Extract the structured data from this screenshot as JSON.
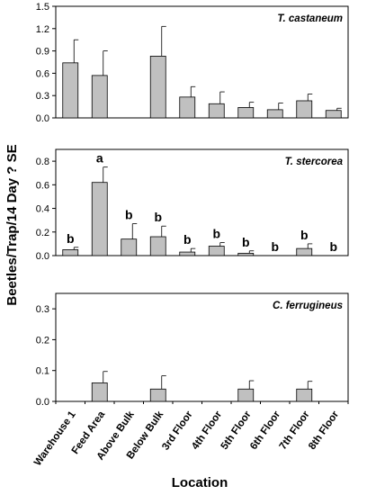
{
  "figure": {
    "ylabel": "Beetles/Trap/14 Day ? SE",
    "xlabel": "Location"
  },
  "chart_data": [
    {
      "type": "bar",
      "title": "T. castaneum",
      "categories": [
        "Warehouse 1",
        "Feed Area",
        "Above Bulk",
        "Below Bulk",
        "3rd Floor",
        "4th Floor",
        "5th Floor",
        "6th Floor",
        "7th Floor",
        "8th Floor"
      ],
      "values": [
        0.74,
        0.57,
        0,
        0.83,
        0.28,
        0.19,
        0.14,
        0.11,
        0.23,
        0.1
      ],
      "errors": [
        0.31,
        0.33,
        0,
        0.4,
        0.14,
        0.16,
        0.07,
        0.09,
        0.09,
        0.03
      ],
      "ylim": [
        0,
        1.5
      ],
      "yticks": [
        "0.0",
        "0.3",
        "0.6",
        "0.9",
        "1.2",
        "1.5"
      ],
      "letters": [],
      "bar_color": "#c0c0c0"
    },
    {
      "type": "bar",
      "title": "T. stercorea",
      "categories": [
        "Warehouse 1",
        "Feed Area",
        "Above Bulk",
        "Below Bulk",
        "3rd Floor",
        "4th Floor",
        "5th Floor",
        "6th Floor",
        "7th Floor",
        "8th Floor"
      ],
      "values": [
        0.05,
        0.62,
        0.14,
        0.16,
        0.03,
        0.08,
        0.02,
        0,
        0.06,
        0
      ],
      "errors": [
        0.02,
        0.13,
        0.13,
        0.09,
        0.03,
        0.03,
        0.02,
        0,
        0.04,
        0
      ],
      "ylim": [
        0,
        0.9
      ],
      "yticks": [
        "0.0",
        "0.2",
        "0.4",
        "0.6",
        "0.8"
      ],
      "letters": [
        "b",
        "a",
        "b",
        "b",
        "b",
        "b",
        "b",
        "b",
        "b",
        "b"
      ],
      "bar_color": "#c0c0c0"
    },
    {
      "type": "bar",
      "title": "C. ferrugineus",
      "categories": [
        "Warehouse 1",
        "Feed Area",
        "Above Bulk",
        "Below Bulk",
        "3rd Floor",
        "4th Floor",
        "5th Floor",
        "6th Floor",
        "7th Floor",
        "8th Floor"
      ],
      "values": [
        0,
        0.06,
        0,
        0.04,
        0,
        0,
        0.04,
        0,
        0.04,
        0
      ],
      "errors": [
        0,
        0.037,
        0,
        0.043,
        0,
        0,
        0.027,
        0,
        0.025,
        0
      ],
      "ylim": [
        0,
        0.35
      ],
      "yticks": [
        "0.0",
        "0.1",
        "0.2",
        "0.3"
      ],
      "letters": [],
      "bar_color": "#c0c0c0"
    }
  ]
}
